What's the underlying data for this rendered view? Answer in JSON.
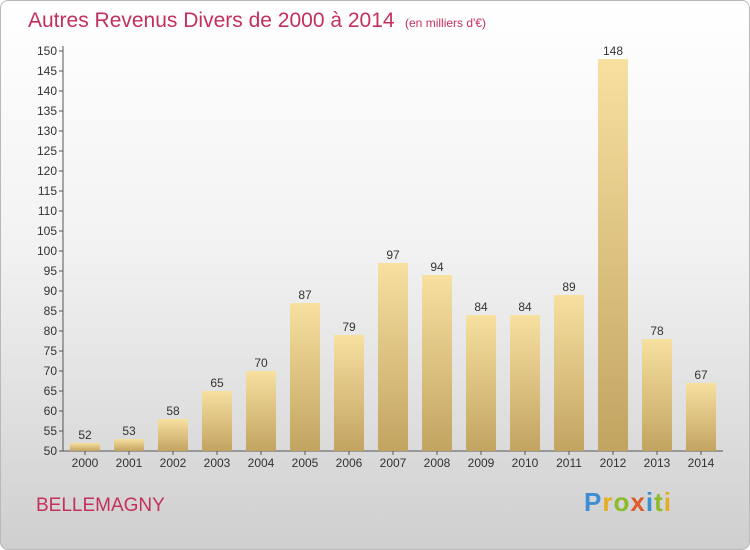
{
  "header": {
    "title": "Autres Revenus Divers de 2000 à 2014",
    "unit": "(en milliers d'€)"
  },
  "commune": "BELLEMAGNY",
  "logo": {
    "text": "Proxiti",
    "letters": [
      "P",
      "r",
      "o",
      "x",
      "i",
      "t",
      "i"
    ]
  },
  "colors": {
    "title": "#c4305c",
    "bar_light": "#f7e0a0",
    "bar_dark": "#c2a461"
  },
  "chart_data": {
    "type": "bar",
    "title": "Autres Revenus Divers de 2000 à 2014",
    "subtitle": "(en milliers d'€)",
    "categories": [
      "2000",
      "2001",
      "2002",
      "2003",
      "2004",
      "2005",
      "2006",
      "2007",
      "2008",
      "2009",
      "2010",
      "2011",
      "2012",
      "2013",
      "2014"
    ],
    "values": [
      52,
      53,
      58,
      65,
      70,
      87,
      79,
      97,
      94,
      84,
      84,
      89,
      148,
      78,
      67
    ],
    "ylim": [
      50,
      150
    ],
    "ytick_step": 5,
    "grid": false,
    "data_labels": true
  }
}
